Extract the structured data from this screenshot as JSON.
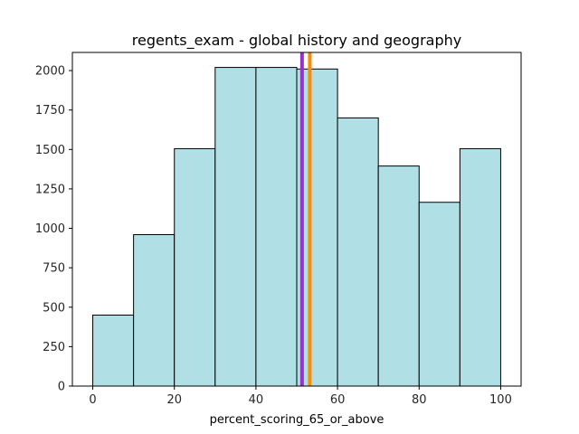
{
  "chart_data": {
    "type": "bar",
    "title": "regents_exam - global history and geography",
    "xlabel": "percent_scoring_65_or_above",
    "ylabel": "",
    "bins": [
      {
        "start": 0,
        "end": 10,
        "count": 450
      },
      {
        "start": 10,
        "end": 20,
        "count": 960
      },
      {
        "start": 20,
        "end": 30,
        "count": 1505
      },
      {
        "start": 30,
        "end": 40,
        "count": 2020
      },
      {
        "start": 40,
        "end": 50,
        "count": 2020
      },
      {
        "start": 50,
        "end": 60,
        "count": 2010
      },
      {
        "start": 60,
        "end": 70,
        "count": 1700
      },
      {
        "start": 70,
        "end": 80,
        "count": 1395
      },
      {
        "start": 80,
        "end": 90,
        "count": 1165
      },
      {
        "start": 90,
        "end": 100,
        "count": 1505
      }
    ],
    "xlim": [
      -5,
      105
    ],
    "ylim": [
      0,
      2115
    ],
    "xticks": [
      0,
      20,
      40,
      60,
      80,
      100
    ],
    "yticks": [
      0,
      250,
      500,
      750,
      1000,
      1250,
      1500,
      1750,
      2000
    ],
    "reference_lines": [
      {
        "x": 51.3,
        "color": "#9932cc"
      },
      {
        "x": 53.2,
        "color": "#ff8c00"
      }
    ],
    "bar_color": "#b0dfe5",
    "edge_color": "#000000",
    "grid": false
  }
}
